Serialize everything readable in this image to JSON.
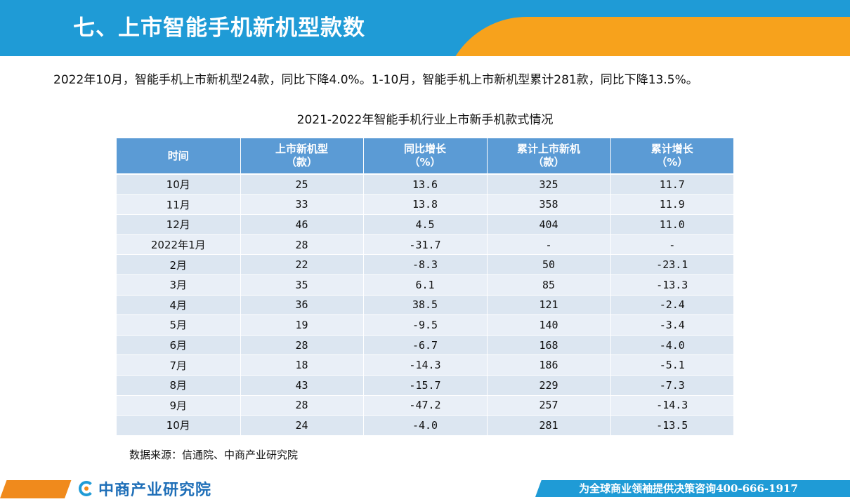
{
  "header": {
    "title": "七、上市智能手机新机型款数",
    "colors": {
      "blue": "#1f9bd6",
      "orange": "#f7a21c"
    }
  },
  "summary": "2022年10月，智能手机上市新机型24款，同比下降4.0%。1-10月，智能手机上市新机型累计281款，同比下降13.5%。",
  "table": {
    "title": "2021-2022年智能手机行业上市新手机款式情况",
    "headers": [
      {
        "line1": "时间",
        "line2": ""
      },
      {
        "line1": "上市新机型",
        "line2": "（款）"
      },
      {
        "line1": "同比增长",
        "line2": "（%）"
      },
      {
        "line1": "累计上市新机",
        "line2": "（款）"
      },
      {
        "line1": "累计增长",
        "line2": "（%）"
      }
    ],
    "rows": [
      [
        "10月",
        "25",
        "13.6",
        "325",
        "11.7"
      ],
      [
        "11月",
        "33",
        "13.8",
        "358",
        "11.9"
      ],
      [
        "12月",
        "46",
        "4.5",
        "404",
        "11.0"
      ],
      [
        "2022年1月",
        "28",
        "-31.7",
        "-",
        "-"
      ],
      [
        "2月",
        "22",
        "-8.3",
        "50",
        "-23.1"
      ],
      [
        "3月",
        "35",
        "6.1",
        "85",
        "-13.3"
      ],
      [
        "4月",
        "36",
        "38.5",
        "121",
        "-2.4"
      ],
      [
        "5月",
        "19",
        "-9.5",
        "140",
        "-3.4"
      ],
      [
        "6月",
        "28",
        "-6.7",
        "168",
        "-4.0"
      ],
      [
        "7月",
        "18",
        "-14.3",
        "186",
        "-5.1"
      ],
      [
        "8月",
        "43",
        "-15.7",
        "229",
        "-7.3"
      ],
      [
        "9月",
        "28",
        "-47.2",
        "257",
        "-14.3"
      ],
      [
        "10月",
        "24",
        "-4.0",
        "281",
        "-13.5"
      ]
    ]
  },
  "source": "数据来源：信通院、中商产业研究院",
  "footer": {
    "logo_text": "中商产业研究院",
    "logo_icon": "askci-logo-icon",
    "slogan": "为全球商业领袖提供决策咨询400-666-1917"
  }
}
